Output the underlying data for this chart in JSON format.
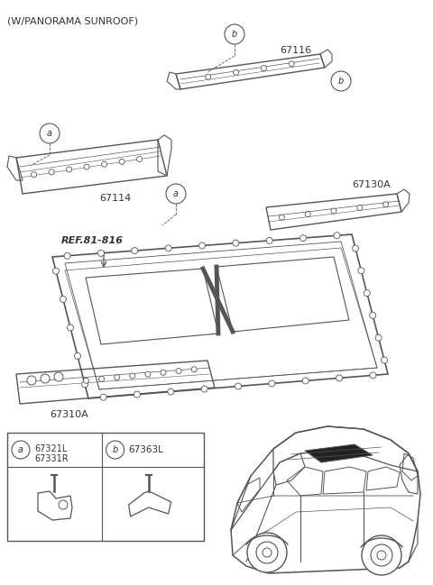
{
  "title": "(W/PANORAMA SUNROOF)",
  "bg_color": "#ffffff",
  "lc": "#555555",
  "tc": "#333333",
  "part_67116_label": "67116",
  "part_67114_label": "67114",
  "part_67130A_label": "67130A",
  "part_ref_label": "REF.81-816",
  "part_67310A_label": "67310A",
  "part_67321L_label": "67321L",
  "part_67331R_label": "67331R",
  "part_67363L_label": "67363L"
}
